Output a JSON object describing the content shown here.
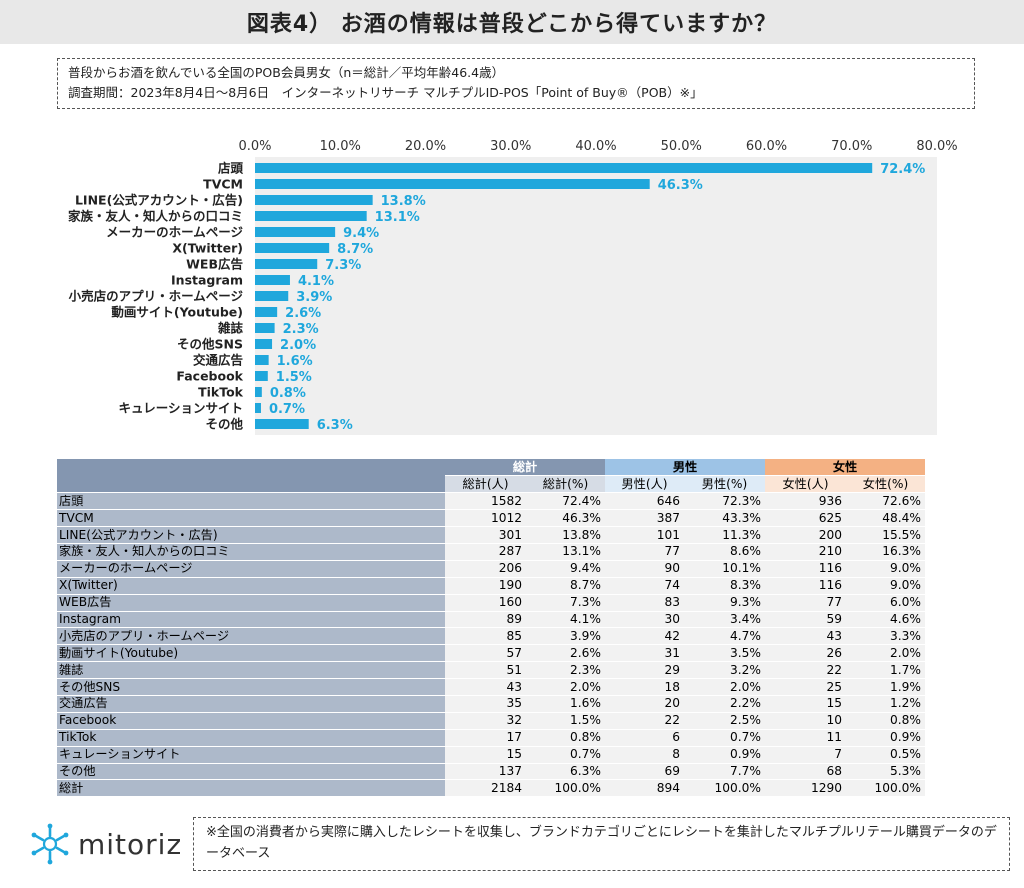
{
  "title": "図表4） お酒の情報は普段どこから得ていますか？",
  "survey": {
    "line1": "普段からお酒を飲んでいる全国のPOB会員男女（n＝総計／平均年齢46.4歳）",
    "line2": "調査期間：2023年8月4日～8月6日　インターネットリサーチ マルチプルID-POS「Point of Buy®（POB）※」"
  },
  "colors": {
    "bar": "#1fa7dc",
    "label": "#1fa7dc",
    "plot_bg": "#efefef"
  },
  "chart_data": {
    "type": "bar",
    "orientation": "horizontal",
    "categories": [
      "店頭",
      "TVCM",
      "LINE(公式アカウント・広告)",
      "家族・友人・知人からの口コミ",
      "メーカーのホームページ",
      "X(Twitter)",
      "WEB広告",
      "Instagram",
      "小売店のアプリ・ホームページ",
      "動画サイト(Youtube)",
      "雑誌",
      "その他SNS",
      "交通広告",
      "Facebook",
      "TikTok",
      "キュレーションサイト",
      "その他"
    ],
    "values": [
      72.4,
      46.3,
      13.8,
      13.1,
      9.4,
      8.7,
      7.3,
      4.1,
      3.9,
      2.6,
      2.3,
      2.0,
      1.6,
      1.5,
      0.8,
      0.7,
      6.3
    ],
    "data_labels": [
      "72.4%",
      "46.3%",
      "13.8%",
      "13.1%",
      "9.4%",
      "8.7%",
      "7.3%",
      "4.1%",
      "3.9%",
      "2.6%",
      "2.3%",
      "2.0%",
      "1.6%",
      "1.5%",
      "0.8%",
      "0.7%",
      "6.3%"
    ],
    "xlim": [
      0,
      80
    ],
    "xticks": [
      "0.0%",
      "10.0%",
      "20.0%",
      "30.0%",
      "40.0%",
      "50.0%",
      "60.0%",
      "70.0%",
      "80.0%"
    ],
    "grid": false,
    "axis_position": "top"
  },
  "table": {
    "groups": [
      "総計",
      "男性",
      "女性"
    ],
    "subheaders": [
      "総計(人)",
      "総計(%)",
      "男性(人)",
      "男性(%)",
      "女性(人)",
      "女性(%)"
    ],
    "rows": [
      [
        "店頭",
        "1582",
        "72.4%",
        "646",
        "72.3%",
        "936",
        "72.6%"
      ],
      [
        "TVCM",
        "1012",
        "46.3%",
        "387",
        "43.3%",
        "625",
        "48.4%"
      ],
      [
        "LINE(公式アカウント・広告)",
        "301",
        "13.8%",
        "101",
        "11.3%",
        "200",
        "15.5%"
      ],
      [
        "家族・友人・知人からの口コミ",
        "287",
        "13.1%",
        "77",
        "8.6%",
        "210",
        "16.3%"
      ],
      [
        "メーカーのホームページ",
        "206",
        "9.4%",
        "90",
        "10.1%",
        "116",
        "9.0%"
      ],
      [
        "X(Twitter)",
        "190",
        "8.7%",
        "74",
        "8.3%",
        "116",
        "9.0%"
      ],
      [
        "WEB広告",
        "160",
        "7.3%",
        "83",
        "9.3%",
        "77",
        "6.0%"
      ],
      [
        "Instagram",
        "89",
        "4.1%",
        "30",
        "3.4%",
        "59",
        "4.6%"
      ],
      [
        "小売店のアプリ・ホームページ",
        "85",
        "3.9%",
        "42",
        "4.7%",
        "43",
        "3.3%"
      ],
      [
        "動画サイト(Youtube)",
        "57",
        "2.6%",
        "31",
        "3.5%",
        "26",
        "2.0%"
      ],
      [
        "雑誌",
        "51",
        "2.3%",
        "29",
        "3.2%",
        "22",
        "1.7%"
      ],
      [
        "その他SNS",
        "43",
        "2.0%",
        "18",
        "2.0%",
        "25",
        "1.9%"
      ],
      [
        "交通広告",
        "35",
        "1.6%",
        "20",
        "2.2%",
        "15",
        "1.2%"
      ],
      [
        "Facebook",
        "32",
        "1.5%",
        "22",
        "2.5%",
        "10",
        "0.8%"
      ],
      [
        "TikTok",
        "17",
        "0.8%",
        "6",
        "0.7%",
        "11",
        "0.9%"
      ],
      [
        "キュレーションサイト",
        "15",
        "0.7%",
        "8",
        "0.9%",
        "7",
        "0.5%"
      ],
      [
        "その他",
        "137",
        "6.3%",
        "69",
        "7.7%",
        "68",
        "5.3%"
      ],
      [
        "総計",
        "2184",
        "100.0%",
        "894",
        "100.0%",
        "1290",
        "100.0%"
      ]
    ]
  },
  "logo": {
    "text": "mitoriz"
  },
  "footnote": "※全国の消費者から実際に購入したレシートを収集し、ブランドカテゴリごとにレシートを集計したマルチプルリテール購買データのデータベース"
}
